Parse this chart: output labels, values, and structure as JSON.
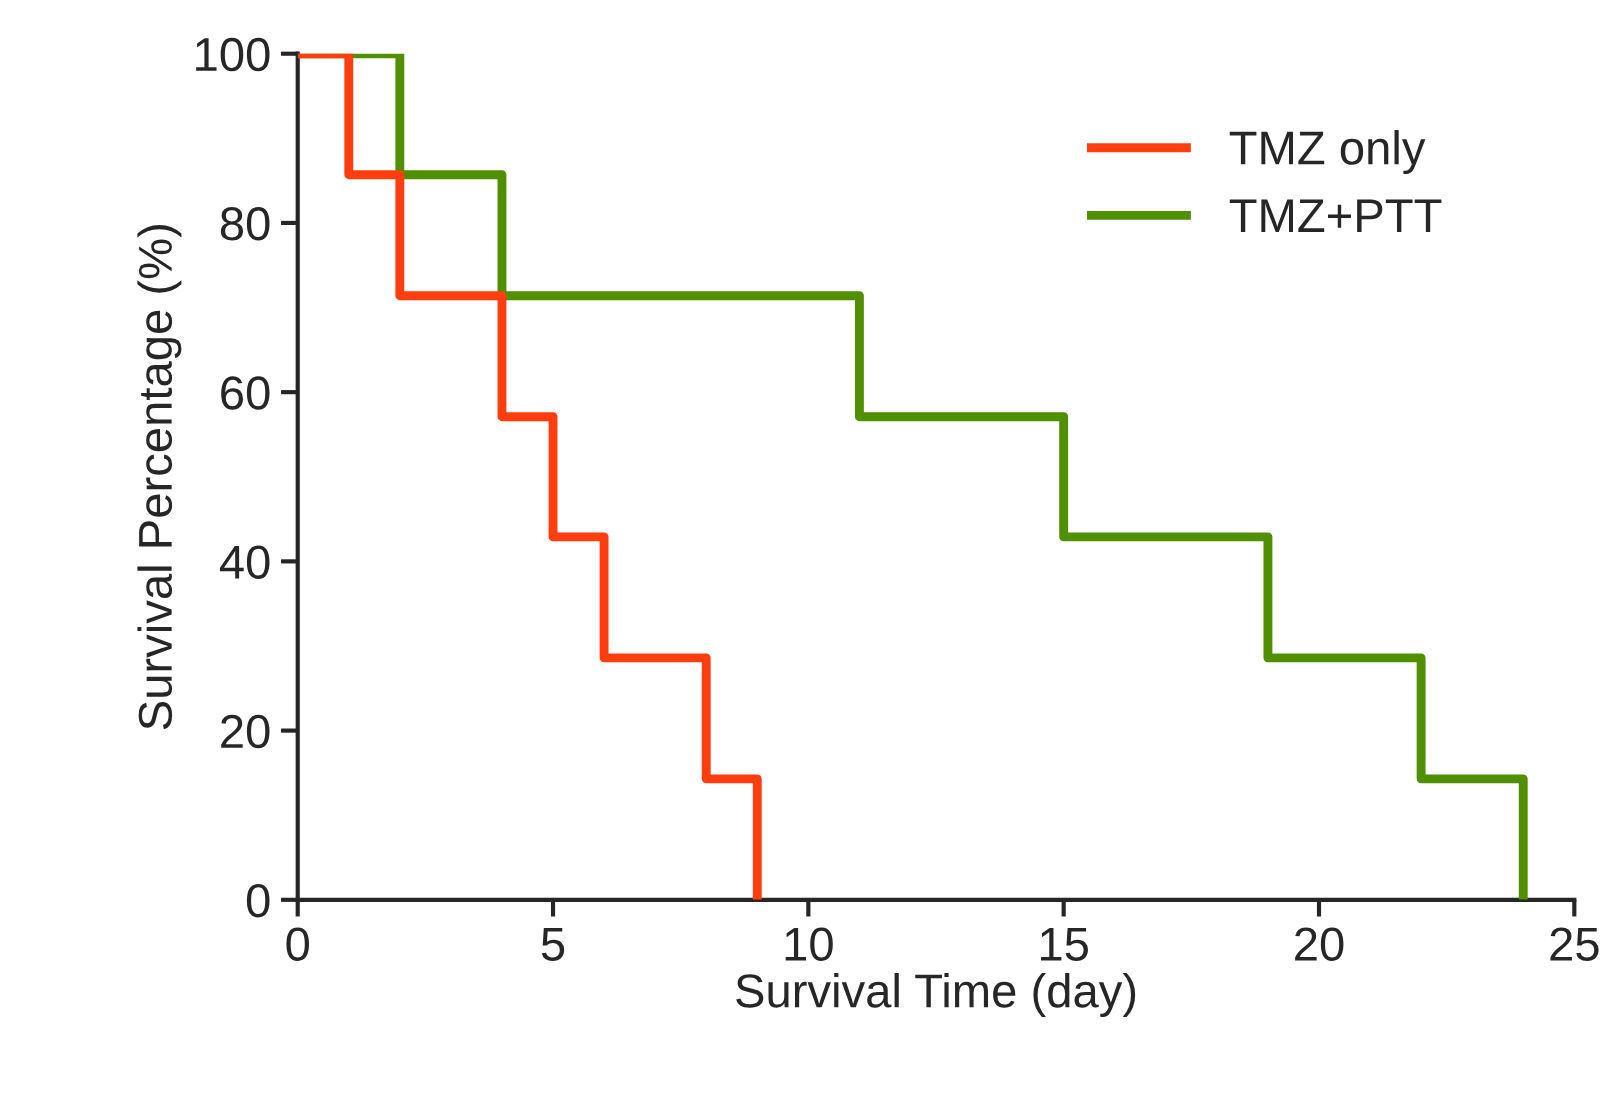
{
  "chart_data": {
    "type": "step",
    "xlabel": "Survival Time (day)",
    "ylabel": "Survival Percentage (%)",
    "xlim": [
      0,
      25
    ],
    "xticks": [
      0,
      5,
      10,
      15,
      20,
      25
    ],
    "ylim": [
      0,
      100
    ],
    "yticks": [
      0,
      20,
      40,
      60,
      80,
      100
    ],
    "grid": false,
    "legend": "top right",
    "line_style": "solid",
    "series": [
      {
        "name": "TMZ only",
        "color": "#ff3d0f",
        "x": [
          0,
          1,
          2,
          4,
          5,
          6,
          8,
          9
        ],
        "values": [
          100,
          85.7,
          71.4,
          57.1,
          42.9,
          28.6,
          14.3,
          0
        ]
      },
      {
        "name": "TMZ+PTT",
        "color": "#4f8f00",
        "x": [
          0,
          2,
          4,
          11,
          15,
          19,
          22,
          24
        ],
        "values": [
          100,
          85.7,
          71.4,
          57.1,
          42.9,
          28.6,
          14.3,
          0
        ]
      }
    ]
  }
}
